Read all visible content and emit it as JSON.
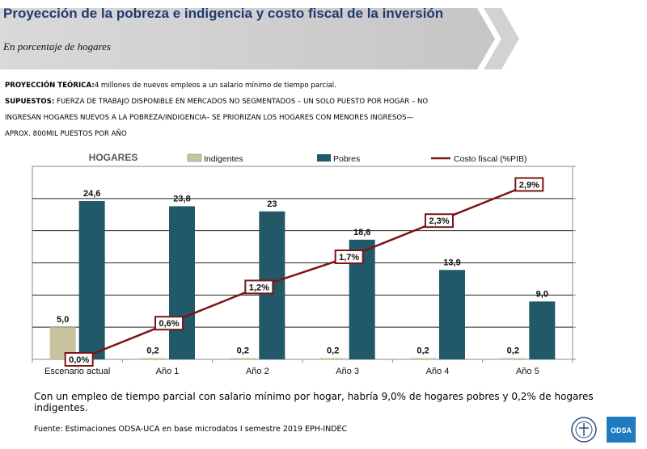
{
  "header": {
    "title": "Proyección de la pobreza  e indigencia y costo fiscal de la inversión",
    "subtitle": "En porcentaje de hogares"
  },
  "notes": {
    "line1_label": "PROYECCIÓN TEÓRICA:",
    "line1_text": "4 millones de nuevos empleos a un salario mínimo de tiempo parcial.",
    "line2_label": "SUPUESTOS:",
    "line2_text": " FUERZA DE TRABAJO DISPONIBLE EN MERCADOS NO SEGMENTADOS – UN SOLO PUESTO POR HOGAR – NO",
    "line3_text": "INGRESAN HOGARES NUEVOS A LA POBREZA/INDIGENCIA– SE PRIORIZAN LOS HOGARES CON MENORES INGRESOS—",
    "line4_text": "APROX. 800MIL PUESTOS POR AÑO"
  },
  "chart_data": {
    "type": "bar",
    "title": "HOGARES",
    "categories": [
      "Escenario actual",
      "Año 1",
      "Año 2",
      "Año 3",
      "Año 4",
      "Año 5"
    ],
    "series": [
      {
        "name": "Indigentes",
        "type": "bar",
        "values": [
          5.0,
          0.2,
          0.2,
          0.2,
          0.2,
          0.2
        ],
        "labels": [
          "5,0",
          "0,2",
          "0,2",
          "0,2",
          "0,2",
          "0,2"
        ],
        "color": "#c8c49e"
      },
      {
        "name": "Pobres",
        "type": "bar",
        "values": [
          24.6,
          23.8,
          23.0,
          18.6,
          13.9,
          9.0
        ],
        "labels": [
          "24,6",
          "23,8",
          "23",
          "18,6",
          "13,9",
          "9,0"
        ],
        "color": "#215968"
      },
      {
        "name": "Costo fiscal (%PIB)",
        "type": "line",
        "values": [
          0.0,
          0.6,
          1.2,
          1.7,
          2.3,
          2.9
        ],
        "labels": [
          "0,0%",
          "0,6%",
          "1,2%",
          "1,7%",
          "2,3%",
          "2,9%"
        ],
        "color": "#7b1515"
      }
    ],
    "ylim": [
      0,
      30
    ],
    "y2lim": [
      0,
      3.2
    ],
    "grid": true,
    "legend": "top"
  },
  "conclusion": "Con un empleo de tiempo parcial con salario mínimo por hogar, habría 9,0% de hogares pobres y 0,2% de hogares indigentes.",
  "source": "Fuente: Estimaciones ODSA-UCA en base microdatos I semestre 2019 EPH-INDEC",
  "logos": {
    "seal": "uca-seal-icon",
    "odsa_text": "ODSA"
  }
}
